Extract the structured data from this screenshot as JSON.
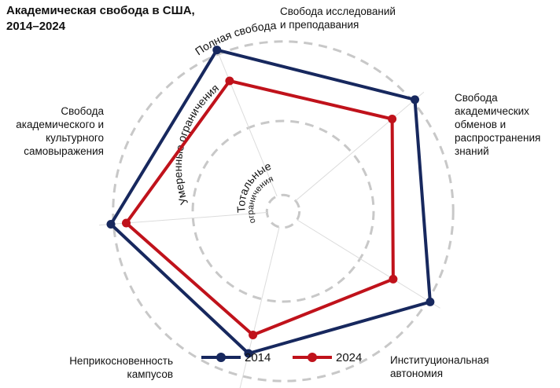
{
  "title": [
    "Академическая свобода в США,",
    "2014–2024"
  ],
  "colors": {
    "s2014": "#17285e",
    "s2024": "#c0121b",
    "ring": "#c8c8c8",
    "spoke": "#dcdcdc"
  },
  "chart_data": {
    "type": "radar",
    "categories": [
      [
        "Свобода исследований",
        "и преподавания"
      ],
      [
        "Свобода",
        "академических",
        "обменов и",
        "распространения",
        "знаний"
      ],
      [
        "Институциональная",
        "автономия"
      ],
      [
        "Неприкосновенность",
        "кампусов"
      ],
      [
        "Свобода",
        "академического и",
        "культурного",
        "самовыражения"
      ]
    ],
    "levels": [
      "Тотальные ограничения",
      "Умеренные ограничения",
      "Полная свобода"
    ],
    "level_text": {
      "total": [
        "Тотальные",
        "ограничения"
      ],
      "moderate": "Умеренные ограничения",
      "full": "Полная свобода"
    },
    "rlim": [
      0,
      1
    ],
    "series": [
      {
        "name": "2014",
        "values": [
          0.965,
          0.955,
          0.955,
          0.81,
          0.955
        ]
      },
      {
        "name": "2024",
        "values": [
          0.78,
          0.79,
          0.715,
          0.705,
          0.87
        ]
      }
    ],
    "legend_position": "bottom-center",
    "grid": true
  }
}
